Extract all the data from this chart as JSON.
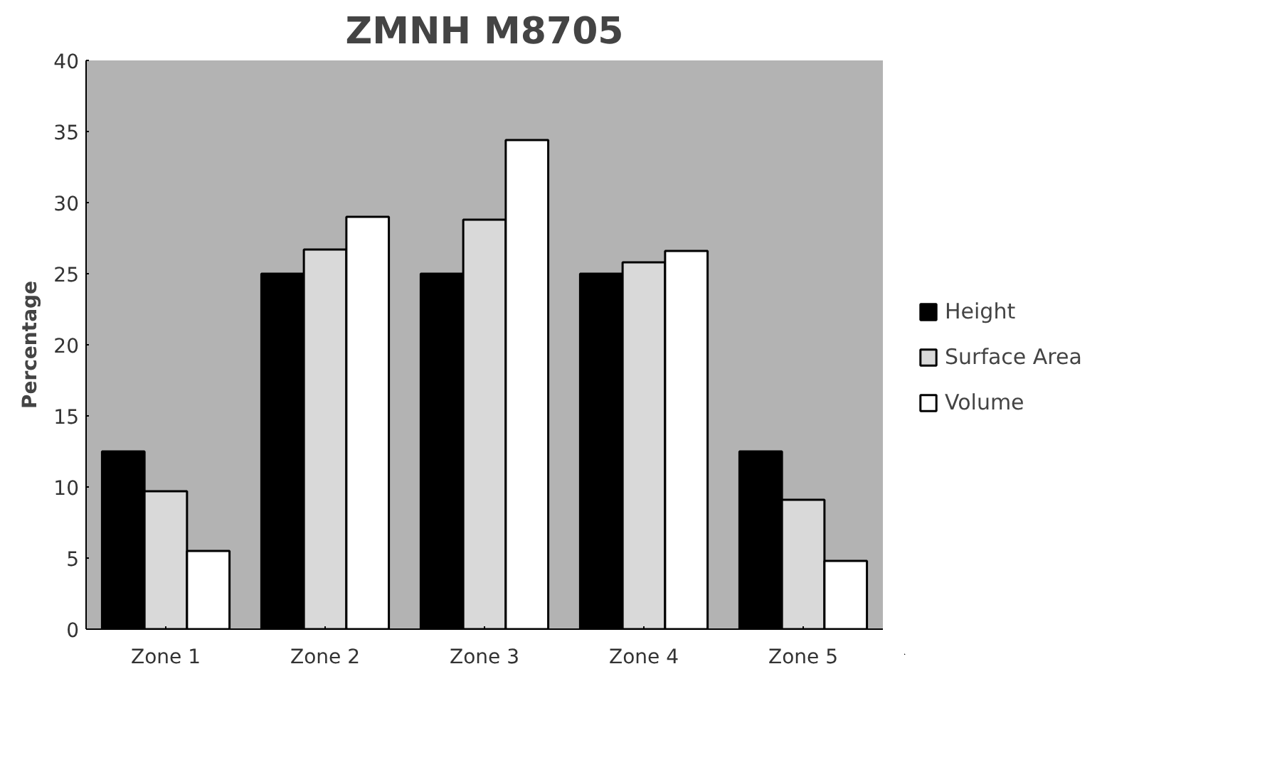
{
  "chart_data": {
    "type": "bar",
    "title": "ZMNH M8705",
    "ylabel": "Percentage",
    "categories": [
      "Zone 1",
      "Zone 2",
      "Zone 3",
      "Zone 4",
      "Zone 5"
    ],
    "series": [
      {
        "name": "Height",
        "color": "#000000",
        "values": [
          12.5,
          25,
          25,
          25,
          12.5
        ]
      },
      {
        "name": "Surface Area",
        "color": "#d9d9d9",
        "values": [
          9.7,
          26.7,
          28.8,
          25.8,
          9.1
        ]
      },
      {
        "name": "Volume",
        "color": "#ffffff",
        "values": [
          5.5,
          29,
          34.4,
          26.6,
          4.8
        ]
      }
    ],
    "ylim": [
      0,
      40
    ],
    "yticks": [
      0,
      5,
      10,
      15,
      20,
      25,
      30,
      35,
      40
    ],
    "grid": false,
    "legend": "right"
  }
}
